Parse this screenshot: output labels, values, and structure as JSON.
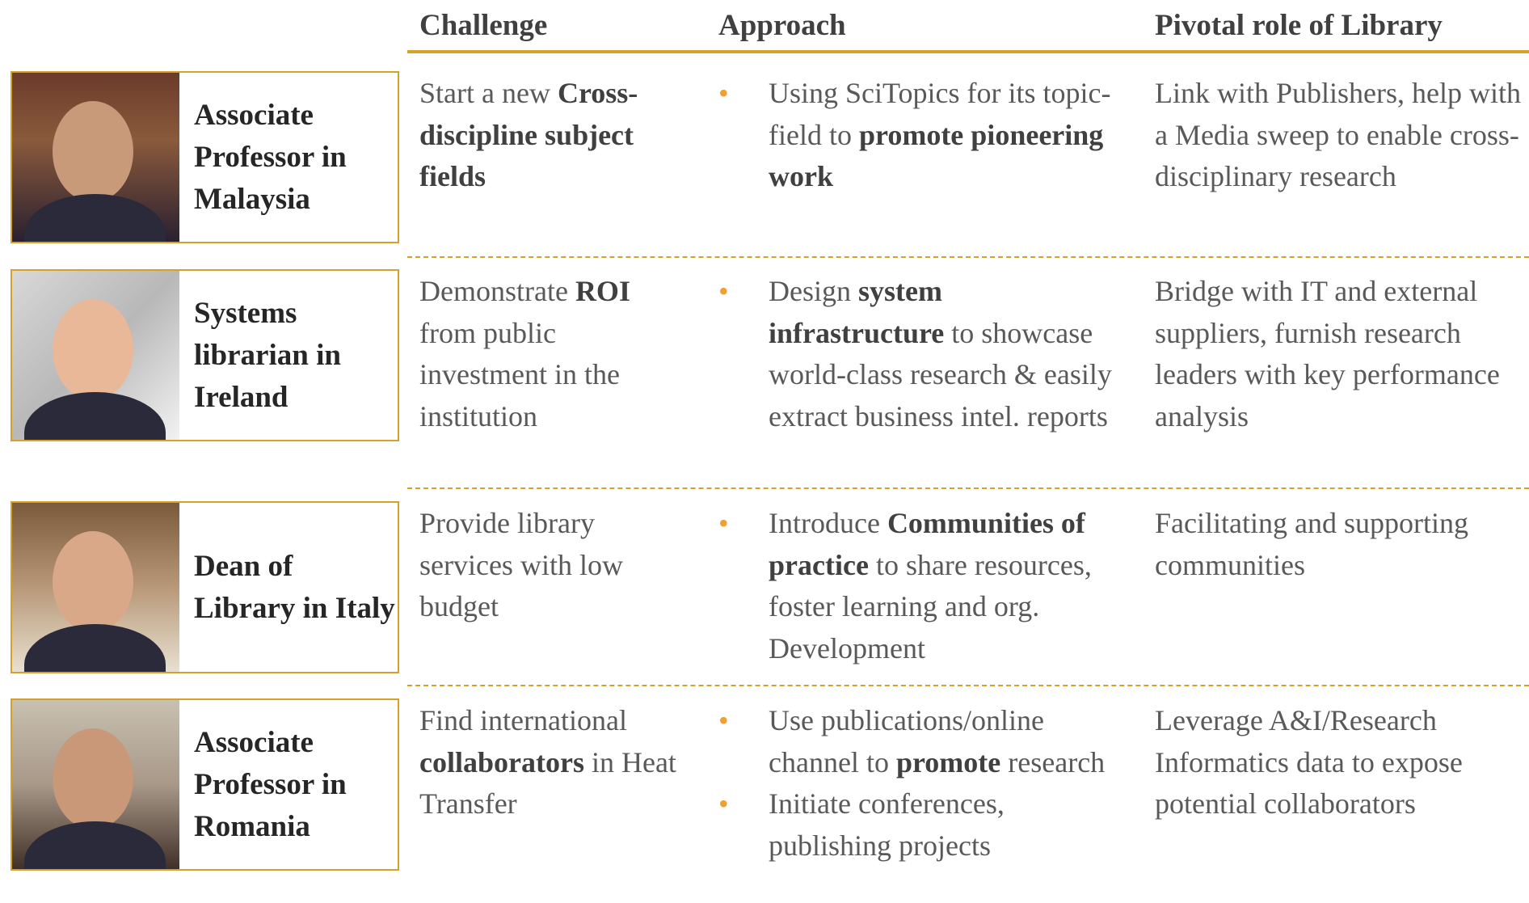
{
  "header": {
    "columns": [
      "Challenge",
      "Approach",
      "Pivotal role of Library"
    ]
  },
  "rows": [
    {
      "person": "Associate Professor in Malaysia",
      "challenge": [
        {
          "text": "Start a new ",
          "bold": false
        },
        {
          "text": "Cross-discipline subject fields",
          "bold": true
        }
      ],
      "approach": [
        [
          {
            "text": "Using SciTopics for its topic-field to ",
            "bold": false
          },
          {
            "text": "promote pioneering work",
            "bold": true
          }
        ]
      ],
      "role": "Link with Publishers, help with a Media sweep to enable cross-disciplinary research"
    },
    {
      "person": "Systems librarian in Ireland",
      "challenge": [
        {
          "text": "Demonstrate ",
          "bold": false
        },
        {
          "text": "ROI",
          "bold": true
        },
        {
          "text": " from public investment in the institution",
          "bold": false
        }
      ],
      "approach": [
        [
          {
            "text": "Design ",
            "bold": false
          },
          {
            "text": "system infrastructure",
            "bold": true
          },
          {
            "text": " to showcase world-class research & easily extract business intel. reports",
            "bold": false
          }
        ]
      ],
      "role": "Bridge with IT and external suppliers, furnish research leaders with key performance analysis"
    },
    {
      "person": "Dean of Library in Italy",
      "challenge": [
        {
          "text": "Provide library services with low budget",
          "bold": false
        }
      ],
      "approach": [
        [
          {
            "text": "Introduce ",
            "bold": false
          },
          {
            "text": "Communities of practice",
            "bold": true
          },
          {
            "text": " to share resources, foster learning and org. Development",
            "bold": false
          }
        ]
      ],
      "role": "Facilitating and supporting communities"
    },
    {
      "person": "Associate Professor in Romania",
      "challenge": [
        {
          "text": "Find international ",
          "bold": false
        },
        {
          "text": "collaborators",
          "bold": true
        },
        {
          "text": " in Heat Transfer",
          "bold": false
        }
      ],
      "approach": [
        [
          {
            "text": "Use publications/online channel to ",
            "bold": false
          },
          {
            "text": "promote",
            "bold": true
          },
          {
            "text": " research",
            "bold": false
          }
        ],
        [
          {
            "text": "Initiate conferences, publishing projects",
            "bold": false
          }
        ]
      ],
      "role": "Leverage A&I/Research Informatics data to expose potential collaborators"
    }
  ]
}
